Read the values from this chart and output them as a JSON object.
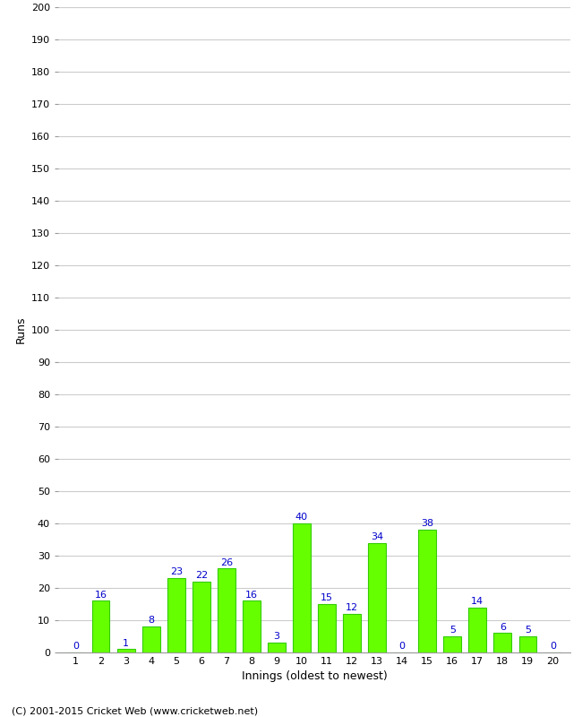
{
  "xlabel": "Innings (oldest to newest)",
  "ylabel": "Runs",
  "categories": [
    1,
    2,
    3,
    4,
    5,
    6,
    7,
    8,
    9,
    10,
    11,
    12,
    13,
    14,
    15,
    16,
    17,
    18,
    19,
    20
  ],
  "values": [
    0,
    16,
    1,
    8,
    23,
    22,
    26,
    16,
    3,
    40,
    15,
    12,
    34,
    0,
    38,
    5,
    14,
    6,
    5,
    0
  ],
  "bar_color": "#66ff00",
  "bar_edge_color": "#33cc00",
  "label_color": "#0000cc",
  "ylim": [
    0,
    200
  ],
  "yticks": [
    0,
    10,
    20,
    30,
    40,
    50,
    60,
    70,
    80,
    90,
    100,
    110,
    120,
    130,
    140,
    150,
    160,
    170,
    180,
    190,
    200
  ],
  "background_color": "#ffffff",
  "grid_color": "#cccccc",
  "footer": "(C) 2001-2015 Cricket Web (www.cricketweb.net)",
  "label_fontsize": 8,
  "axis_fontsize": 9,
  "tick_fontsize": 8,
  "footer_fontsize": 8
}
